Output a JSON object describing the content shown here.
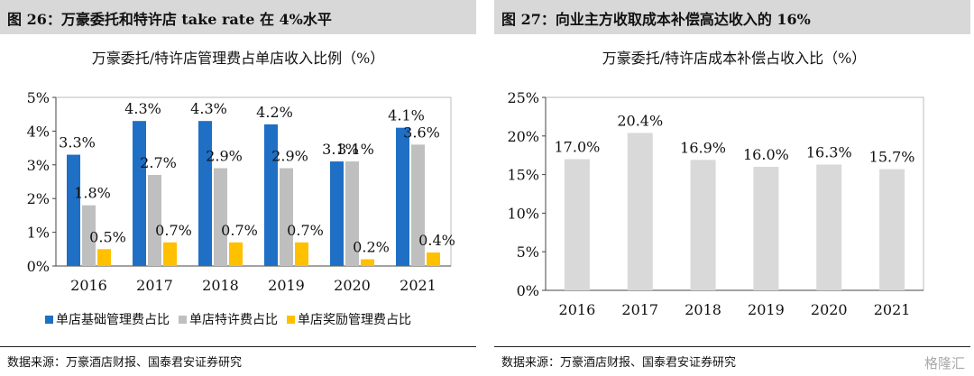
{
  "left": {
    "header": "图 26：万豪委托和特许店 take rate 在 4%水平",
    "source": "数据来源：万豪酒店财报、国泰君安证券研究"
  },
  "right": {
    "header": "图 27：向业主方收取成本补偿高达收入的 16%",
    "source": "数据来源：万豪酒店财报、国泰君安证券研究"
  },
  "watermark": "格隆汇",
  "colors": {
    "blue": "#1f6fc5",
    "gray": "#bfbfbf",
    "yellow": "#ffc000",
    "lightgray": "#d9d9d9"
  },
  "chart_data": [
    {
      "type": "bar",
      "title": "万豪委托/特许店管理费占单店收入比例（%）",
      "categories": [
        "2016",
        "2017",
        "2018",
        "2019",
        "2020",
        "2021"
      ],
      "series": [
        {
          "name": "单店基础管理费占比",
          "values": [
            3.3,
            4.3,
            4.3,
            4.2,
            3.1,
            4.1
          ],
          "labels": [
            "3.3%",
            "4.3%",
            "4.3%",
            "4.2%",
            "3.1%",
            "4.1%"
          ],
          "color": "#1f6fc5"
        },
        {
          "name": "单店特许费占比",
          "values": [
            1.8,
            2.7,
            2.9,
            2.9,
            3.1,
            3.6
          ],
          "labels": [
            "1.8%",
            "2.7%",
            "2.9%",
            "2.9%",
            "3.1%",
            "3.6%"
          ],
          "color": "#bfbfbf"
        },
        {
          "name": "单店奖励管理费占比",
          "values": [
            0.5,
            0.7,
            0.7,
            0.7,
            0.2,
            0.4
          ],
          "labels": [
            "0.5%",
            "0.7%",
            "0.7%",
            "0.7%",
            "0.2%",
            "0.4%"
          ],
          "color": "#ffc000"
        }
      ],
      "yticks": [
        "0%",
        "1%",
        "2%",
        "3%",
        "4%",
        "5%"
      ],
      "ylim": [
        0,
        5
      ],
      "legend": "bottom"
    },
    {
      "type": "bar",
      "title": "万豪委托/特许店成本补偿占收入比（%）",
      "categories": [
        "2016",
        "2017",
        "2018",
        "2019",
        "2020",
        "2021"
      ],
      "series": [
        {
          "values": [
            17.0,
            20.4,
            16.9,
            16.0,
            16.3,
            15.7
          ],
          "labels": [
            "17.0%",
            "20.4%",
            "16.9%",
            "16.0%",
            "16.3%",
            "15.7%"
          ],
          "color": "#d9d9d9"
        }
      ],
      "yticks": [
        "0%",
        "5%",
        "10%",
        "15%",
        "20%",
        "25%"
      ],
      "ylim": [
        0,
        25
      ]
    }
  ]
}
